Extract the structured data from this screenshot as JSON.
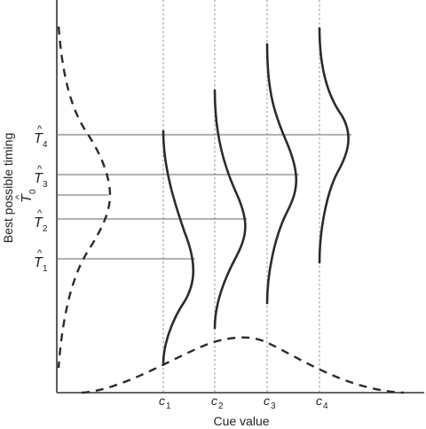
{
  "diagram": {
    "y_axis_label": "Best possible timing",
    "x_axis_label": "Cue value",
    "t_labels": [
      {
        "base": "T",
        "sub": "4"
      },
      {
        "base": "T",
        "sub": "3"
      },
      {
        "base": "T",
        "sub": "0"
      },
      {
        "base": "T",
        "sub": "2"
      },
      {
        "base": "T",
        "sub": "1"
      }
    ],
    "hat_mark": "^",
    "cue_labels": [
      {
        "base": "c",
        "sub": "1"
      },
      {
        "base": "c",
        "sub": "2"
      },
      {
        "base": "c",
        "sub": "3"
      },
      {
        "base": "c",
        "sub": "4"
      }
    ]
  }
}
